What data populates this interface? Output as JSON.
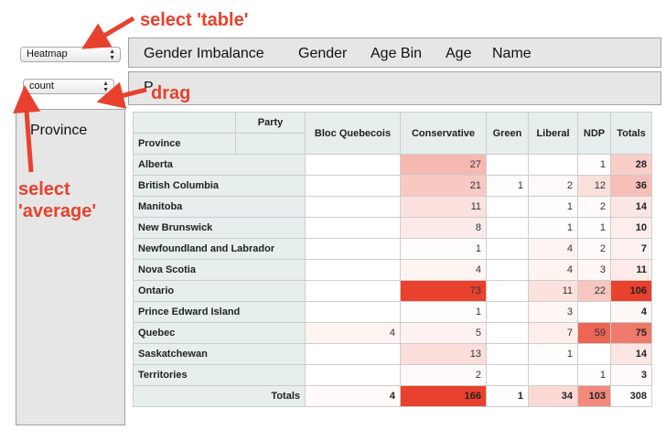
{
  "renderer_select": {
    "value": "Heatmap"
  },
  "aggregator_select": {
    "value": "count"
  },
  "attributes": [
    "Gender Imbalance",
    "Gender",
    "Age Bin",
    "Age",
    "Name"
  ],
  "col_area_attr": "Party",
  "row_area_attr": "Province",
  "drop_zone_partial": "P",
  "annotations": {
    "select_table": "select 'table'",
    "drag": "drag",
    "select_average_1": "select",
    "select_average_2": "'average'"
  },
  "table": {
    "col_attr": "Party",
    "row_attr": "Province",
    "columns": [
      "Bloc Quebecois",
      "Conservative",
      "Green",
      "Liberal",
      "NDP"
    ],
    "totals_label": "Totals",
    "rows": [
      {
        "label": "Alberta",
        "values": [
          "",
          "27",
          "",
          "",
          "1"
        ],
        "total": "28"
      },
      {
        "label": "British Columbia",
        "values": [
          "",
          "21",
          "1",
          "2",
          "12"
        ],
        "total": "36"
      },
      {
        "label": "Manitoba",
        "values": [
          "",
          "11",
          "",
          "1",
          "2"
        ],
        "total": "14"
      },
      {
        "label": "New Brunswick",
        "values": [
          "",
          "8",
          "",
          "1",
          "1"
        ],
        "total": "10"
      },
      {
        "label": "Newfoundland and Labrador",
        "values": [
          "",
          "1",
          "",
          "4",
          "2"
        ],
        "total": "7"
      },
      {
        "label": "Nova Scotia",
        "values": [
          "",
          "4",
          "",
          "4",
          "3"
        ],
        "total": "11"
      },
      {
        "label": "Ontario",
        "values": [
          "",
          "73",
          "",
          "11",
          "22"
        ],
        "total": "106"
      },
      {
        "label": "Prince Edward Island",
        "values": [
          "",
          "1",
          "",
          "3",
          ""
        ],
        "total": "4"
      },
      {
        "label": "Quebec",
        "values": [
          "4",
          "5",
          "",
          "7",
          "59"
        ],
        "total": "75"
      },
      {
        "label": "Saskatchewan",
        "values": [
          "",
          "13",
          "",
          "1",
          ""
        ],
        "total": "14"
      },
      {
        "label": "Territories",
        "values": [
          "",
          "2",
          "",
          "",
          "1"
        ],
        "total": "3"
      }
    ],
    "column_totals": [
      "4",
      "166",
      "1",
      "34",
      "103"
    ],
    "grand_total": "308"
  },
  "colors": {
    "annotation": "#e8412d",
    "heat": "#e8412d",
    "header_bg": "#e6eeee",
    "panel_bg": "#e6e6e6"
  }
}
